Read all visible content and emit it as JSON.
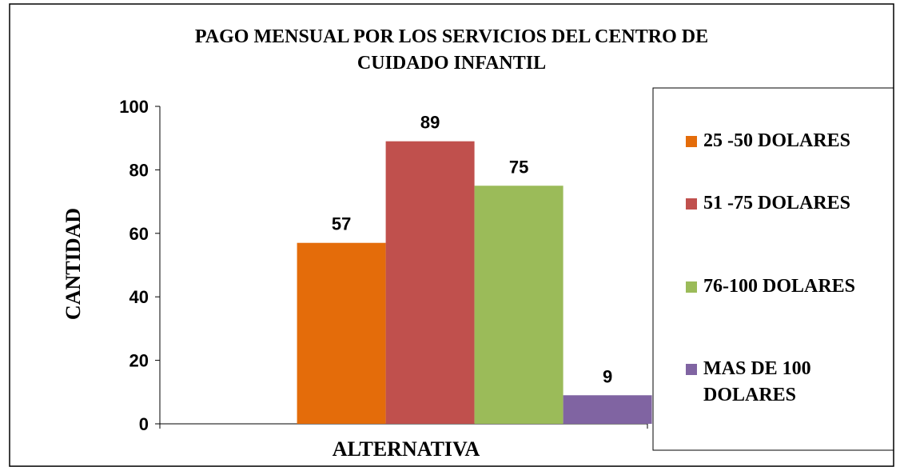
{
  "chart_data": {
    "type": "bar",
    "title": "PAGO MENSUAL POR LOS SERVICIOS DEL CENTRO DE CUIDADO INFANTIL",
    "x_label": "ALTERNATIVA",
    "y_label": "CANTIDAD",
    "categories": [
      null
    ],
    "series": [
      {
        "name": "25 -50 DOLARES",
        "color": "#e46c0a",
        "values": [
          57
        ]
      },
      {
        "name": "51 -75 DOLARES",
        "color": "#c0504d",
        "values": [
          89
        ]
      },
      {
        "name": "76-100 DOLARES",
        "color": "#9bbb59",
        "values": [
          75
        ]
      },
      {
        "name": "MAS DE 100 DOLARES",
        "color": "#8064a2",
        "values": [
          9
        ]
      }
    ],
    "ylim": [
      0,
      100
    ],
    "yticks": [
      0,
      20,
      40,
      60,
      80,
      100
    ],
    "grid": false,
    "legend": "right"
  }
}
